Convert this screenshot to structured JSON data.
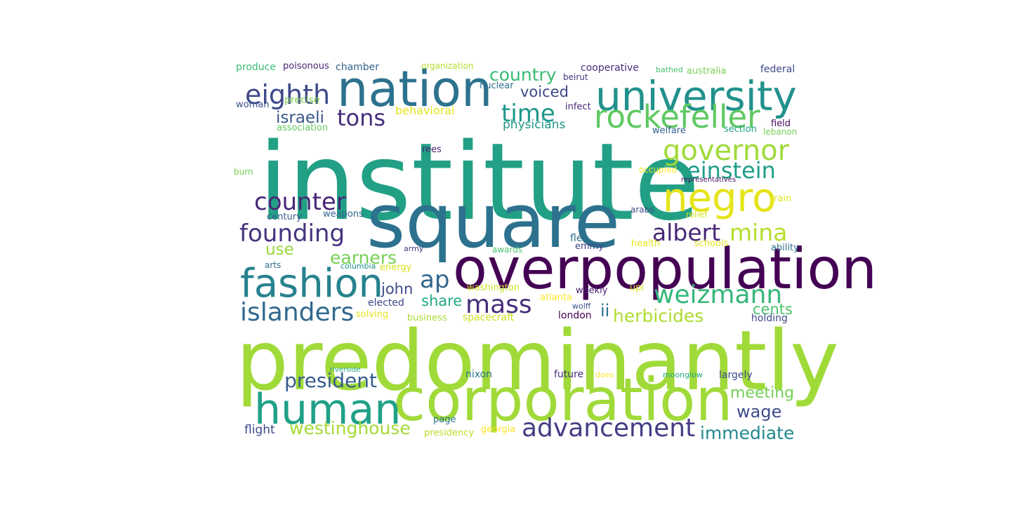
{
  "words": [
    {
      "text": "institute",
      "color": "#22a085"
    },
    {
      "text": "predominantly",
      "color": "#a0da39"
    },
    {
      "text": "square",
      "color": "#2c728e"
    },
    {
      "text": "overpopulation",
      "color": "#440154"
    },
    {
      "text": "corporation",
      "color": "#a0da39"
    },
    {
      "text": "nation",
      "color": "#2c728e"
    },
    {
      "text": "university",
      "color": "#21918c"
    },
    {
      "text": "human",
      "color": "#1fa187"
    },
    {
      "text": "fashion",
      "color": "#26828e"
    },
    {
      "text": "rockefeller",
      "color": "#5ec962"
    },
    {
      "text": "negro",
      "color": "#e5e419"
    },
    {
      "text": "advancement",
      "color": "#433e85"
    },
    {
      "text": "governor",
      "color": "#a0da39"
    },
    {
      "text": "eighth",
      "color": "#3e4989"
    },
    {
      "text": "islanders",
      "color": "#31688e"
    },
    {
      "text": "weizmann",
      "color": "#35b779"
    },
    {
      "text": "albert",
      "color": "#482878"
    },
    {
      "text": "mina",
      "color": "#b5de2b"
    },
    {
      "text": "mass",
      "color": "#472d7b"
    },
    {
      "text": "founding",
      "color": "#46337e"
    },
    {
      "text": "counter",
      "color": "#482677"
    },
    {
      "text": "einstein",
      "color": "#1f9e89"
    },
    {
      "text": "president",
      "color": "#365c8d"
    },
    {
      "text": "westinghouse",
      "color": "#a5db36"
    },
    {
      "text": "tons",
      "color": "#472d7b"
    },
    {
      "text": "time",
      "color": "#1f988b"
    },
    {
      "text": "ap",
      "color": "#31688e"
    },
    {
      "text": "immediate",
      "color": "#23898e"
    },
    {
      "text": "country",
      "color": "#3bbb75"
    },
    {
      "text": "earners",
      "color": "#75d054"
    },
    {
      "text": "herbicides",
      "color": "#addc30"
    },
    {
      "text": "meeting",
      "color": "#73d056"
    },
    {
      "text": "wage",
      "color": "#3e4c8a"
    },
    {
      "text": "israeli",
      "color": "#39568c"
    },
    {
      "text": "voiced",
      "color": "#3e4989"
    },
    {
      "text": "share",
      "color": "#22a884"
    },
    {
      "text": "john",
      "color": "#3e4a89"
    },
    {
      "text": "cents",
      "color": "#4ac16d"
    },
    {
      "text": "ii",
      "color": "#2d708e"
    },
    {
      "text": "use",
      "color": "#98d83e"
    },
    {
      "text": "physicians",
      "color": "#1f958b"
    },
    {
      "text": "behavioral",
      "color": "#e2e418"
    },
    {
      "text": "flight",
      "color": "#3e4a89"
    },
    {
      "text": "produce",
      "color": "#3bbb75"
    },
    {
      "text": "poisonous",
      "color": "#482677"
    },
    {
      "text": "chamber",
      "color": "#33638d"
    },
    {
      "text": "organization",
      "color": "#b5de2b"
    },
    {
      "text": "cooperative",
      "color": "#472d7b"
    },
    {
      "text": "bathed",
      "color": "#4ac16d"
    },
    {
      "text": "australia",
      "color": "#7ad151"
    },
    {
      "text": "federal",
      "color": "#3e4989"
    },
    {
      "text": "nuclear",
      "color": "#2d708e"
    },
    {
      "text": "beirut",
      "color": "#453781"
    },
    {
      "text": "precise",
      "color": "#7ad151"
    },
    {
      "text": "woman",
      "color": "#3b528b"
    },
    {
      "text": "infect",
      "color": "#482475"
    },
    {
      "text": "field",
      "color": "#46075a"
    },
    {
      "text": "association",
      "color": "#63cb5f"
    },
    {
      "text": "welfare",
      "color": "#33638d"
    },
    {
      "text": "section",
      "color": "#20a386"
    },
    {
      "text": "lebanon",
      "color": "#75d054"
    },
    {
      "text": "rees",
      "color": "#481f70"
    },
    {
      "text": "burn",
      "color": "#75d054"
    },
    {
      "text": "occupied",
      "color": "#fde725"
    },
    {
      "text": "representatives",
      "color": "#470e61"
    },
    {
      "text": "train",
      "color": "#e2e418"
    },
    {
      "text": "century",
      "color": "#365c8d"
    },
    {
      "text": "weapons",
      "color": "#31688e"
    },
    {
      "text": "arabs",
      "color": "#3e4989"
    },
    {
      "text": "relief",
      "color": "#d8e219"
    },
    {
      "text": "flea",
      "color": "#2d708e"
    },
    {
      "text": "emmy",
      "color": "#414487"
    },
    {
      "text": "health",
      "color": "#e5e419"
    },
    {
      "text": "schools",
      "color": "#e2e418"
    },
    {
      "text": "ability",
      "color": "#2c728e"
    },
    {
      "text": "army",
      "color": "#46337e"
    },
    {
      "text": "awards",
      "color": "#4ac16d"
    },
    {
      "text": "arts",
      "color": "#2d708e"
    },
    {
      "text": "columbia",
      "color": "#21918c"
    },
    {
      "text": "energy",
      "color": "#d8e219"
    },
    {
      "text": "washington",
      "color": "#cae11f"
    },
    {
      "text": "weekly",
      "color": "#482071"
    },
    {
      "text": "upi",
      "color": "#d8e219"
    },
    {
      "text": "elected",
      "color": "#404688"
    },
    {
      "text": "atlanta",
      "color": "#fde725"
    },
    {
      "text": "wolff",
      "color": "#3b528b"
    },
    {
      "text": "solving",
      "color": "#e5e419"
    },
    {
      "text": "business",
      "color": "#a8db34"
    },
    {
      "text": "spacecraft",
      "color": "#cae11f"
    },
    {
      "text": "london",
      "color": "#440154"
    },
    {
      "text": "holding",
      "color": "#3e4989"
    },
    {
      "text": "nixon",
      "color": "#2a768e"
    },
    {
      "text": "future",
      "color": "#472d7b"
    },
    {
      "text": "does",
      "color": "#fde725"
    },
    {
      "text": "moonglow",
      "color": "#22a884"
    },
    {
      "text": "largely",
      "color": "#3e4989"
    },
    {
      "text": "riverside",
      "color": "#20a386"
    },
    {
      "text": "page",
      "color": "#2c728e"
    },
    {
      "text": "presidency",
      "color": "#b8de29"
    },
    {
      "text": "georgia",
      "color": "#fde725"
    }
  ]
}
